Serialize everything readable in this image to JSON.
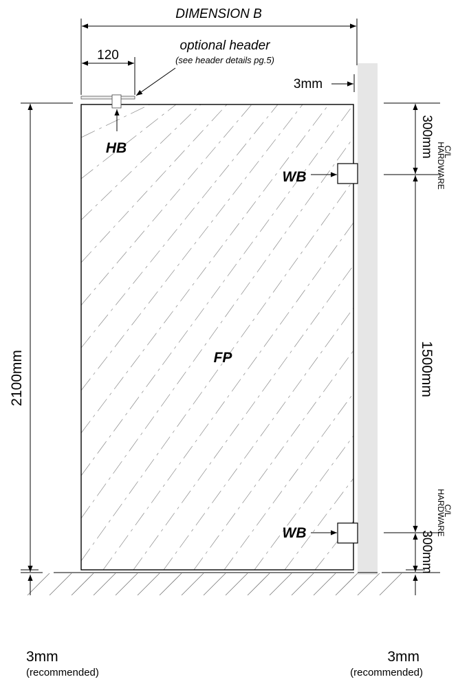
{
  "labels": {
    "dimension_b": "DIMENSION B",
    "optional_header": "optional header",
    "header_note": "(see header details pg.5)",
    "header_offset": "120",
    "gap_top": "3mm",
    "hb": "HB",
    "wb_top": "WB",
    "wb_bottom": "WB",
    "fp": "FP",
    "height": "2100mm",
    "top_hw": "300mm",
    "middle": "1500mm",
    "bottom_hw": "300mm",
    "hardware_top_1": "C/L",
    "hardware_top_2": "HARDWARE",
    "hardware_bottom_1": "C/L",
    "hardware_bottom_2": "HARDWARE",
    "bl_mm": "3mm",
    "bl_rec": "(recommended)",
    "br_mm": "3mm",
    "br_rec": "(recommended)"
  }
}
